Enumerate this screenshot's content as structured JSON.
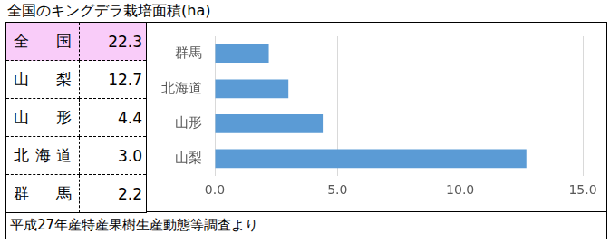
{
  "title": "全国のキングデラ栽培面積(ha)",
  "table": {
    "rows": [
      [
        "全　国",
        "22.3"
      ],
      [
        "山　梨",
        "12.7"
      ],
      [
        "山　形",
        "4.4"
      ],
      [
        "北海道",
        "3.0"
      ],
      [
        "群　馬",
        "2.2"
      ]
    ]
  },
  "chart_data": {
    "type": "bar",
    "orientation": "horizontal",
    "categories": [
      "群馬",
      "北海道",
      "山形",
      "山梨"
    ],
    "values": [
      2.2,
      3.0,
      4.4,
      12.7
    ],
    "color": "#5b9bd5",
    "xlim": [
      0,
      15
    ],
    "xticks": [
      {
        "value": 0,
        "label": "0.0"
      },
      {
        "value": 5,
        "label": "5.0"
      },
      {
        "value": 10,
        "label": "10.0"
      },
      {
        "value": 15,
        "label": "15.0"
      }
    ],
    "grid": true
  },
  "note": "平成27年産特産果樹生産動態等調査より"
}
